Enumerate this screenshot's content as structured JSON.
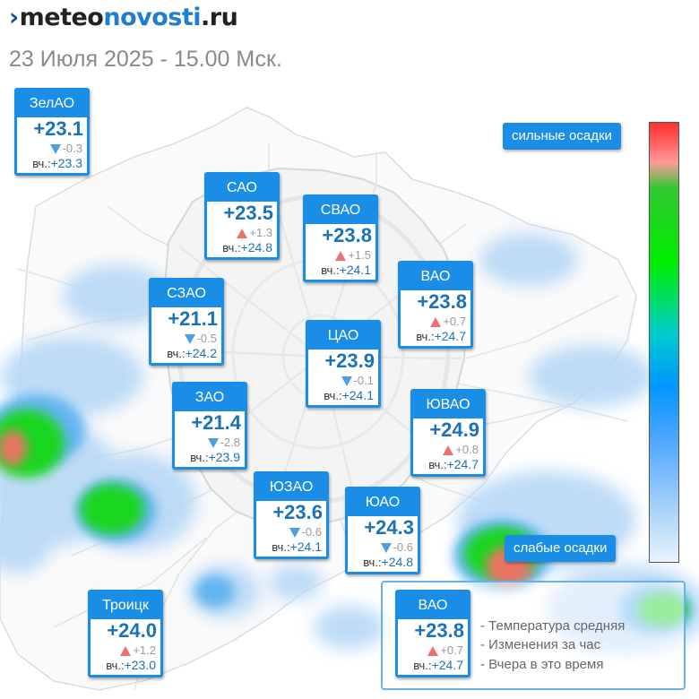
{
  "header": {
    "logo_mark": "›",
    "logo_part1": "meteo",
    "logo_part2": "novosti",
    "logo_part3": ".ru",
    "subtitle": "23 Июля 2025 - 15.00 Мск."
  },
  "yesterday_label": "вч.:",
  "colors": {
    "box_blue": "#1a8ee6",
    "temp_blue": "#1a72b9",
    "arrow_up": "#f07070",
    "arrow_down": "#4a9fe6"
  },
  "districts": [
    {
      "name": "ЗелАО",
      "temp": "+23.1",
      "trend": "down",
      "change": "-0.3",
      "yesterday": "+23.3"
    },
    {
      "name": "САО",
      "temp": "+23.5",
      "trend": "up",
      "change": "+1.3",
      "yesterday": "+24.8"
    },
    {
      "name": "СВАО",
      "temp": "+23.8",
      "trend": "up",
      "change": "+1.5",
      "yesterday": "+24.1"
    },
    {
      "name": "ВАО",
      "temp": "+23.8",
      "trend": "up",
      "change": "+0.7",
      "yesterday": "+24.7"
    },
    {
      "name": "СЗАО",
      "temp": "+21.1",
      "trend": "down",
      "change": "-0.5",
      "yesterday": "+24.2"
    },
    {
      "name": "ЦАО",
      "temp": "+23.9",
      "trend": "down",
      "change": "-0.1",
      "yesterday": "+24.1"
    },
    {
      "name": "ЗАО",
      "temp": "+21.4",
      "trend": "down",
      "change": "-2.8",
      "yesterday": "+23.9"
    },
    {
      "name": "ЮВАО",
      "temp": "+24.9",
      "trend": "up",
      "change": "+0.8",
      "yesterday": "+24.7"
    },
    {
      "name": "ЮЗАО",
      "temp": "+23.6",
      "trend": "down",
      "change": "-0.6",
      "yesterday": "+24.1"
    },
    {
      "name": "ЮАО",
      "temp": "+24.3",
      "trend": "down",
      "change": "-0.6",
      "yesterday": "+24.8"
    },
    {
      "name": "Троицк",
      "temp": "+24.0",
      "trend": "up",
      "change": "+1.2",
      "yesterday": "+23.0"
    }
  ],
  "precip_scale": {
    "strong_label": "сильные осадки",
    "weak_label": "слабые осадки"
  },
  "legend": {
    "example": {
      "name": "ВАО",
      "temp": "+23.8",
      "trend": "up",
      "change": "+0.7",
      "yesterday": "+24.7"
    },
    "line_temp": "- Температура средняя",
    "line_change": "- Изменения за час",
    "line_yesterday": "- Вчера в это время"
  }
}
